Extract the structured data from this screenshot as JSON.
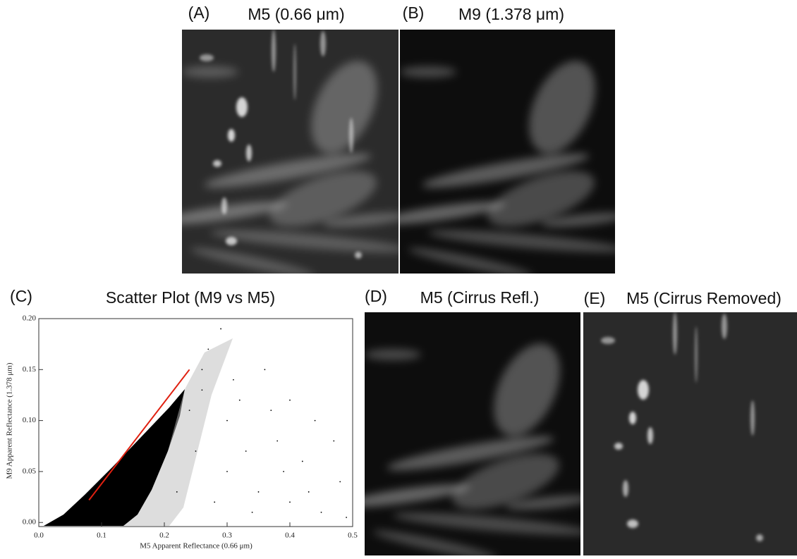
{
  "panels": [
    {
      "label": "(A)",
      "title": "M5 (0.66 μm)"
    },
    {
      "label": "(B)",
      "title": "M9 (1.378 μm)"
    },
    {
      "label": "(C)",
      "title": "Scatter Plot (M9 vs M5)"
    },
    {
      "label": "(D)",
      "title": "M5 (Cirrus Refl.)"
    },
    {
      "label": "(E)",
      "title": "M5 (Cirrus Removed)"
    }
  ],
  "chart_data": {
    "type": "scatter",
    "x_label": "M5 Apparent Reflectance (0.66 μm)",
    "y_label": "M9 Apparent Reflectance (1.378 μm)",
    "xlim": [
      0,
      0.5
    ],
    "ylim": [
      -0.004,
      0.2
    ],
    "xticks": [
      {
        "value": 0,
        "label": "0.0"
      },
      0.1,
      0.2,
      0.3,
      0.4,
      0.5
    ],
    "yticks": [
      {
        "value": 0,
        "label": "0.00"
      },
      {
        "value": 0.05,
        "label": "0.05"
      },
      {
        "value": 0.1,
        "label": "0.10"
      },
      {
        "value": 0.15,
        "label": "0.15"
      },
      {
        "value": 0.2,
        "label": "0.20"
      }
    ],
    "series": [
      {
        "type": "scatter",
        "color": "#000000",
        "x": [
          0.3,
          0.35,
          0.4,
          0.45,
          0.32,
          0.38,
          0.42,
          0.48,
          0.27,
          0.29,
          0.26,
          0.3,
          0.25,
          0.34,
          0.44,
          0.36,
          0.22,
          0.28,
          0.33,
          0.4,
          0.47,
          0.49,
          0.31,
          0.37,
          0.43,
          0.24,
          0.26,
          0.39
        ],
        "y": [
          0.05,
          0.03,
          0.02,
          0.01,
          0.12,
          0.08,
          0.06,
          0.04,
          0.17,
          0.19,
          0.15,
          0.1,
          0.07,
          0.01,
          0.1,
          0.15,
          0.03,
          0.02,
          0.07,
          0.12,
          0.08,
          0.005,
          0.14,
          0.11,
          0.03,
          0.11,
          0.13,
          0.05
        ]
      },
      {
        "type": "line",
        "color": "#e02010",
        "x": [
          0.08,
          0.24
        ],
        "y": [
          0.022,
          0.15
        ]
      }
    ]
  }
}
